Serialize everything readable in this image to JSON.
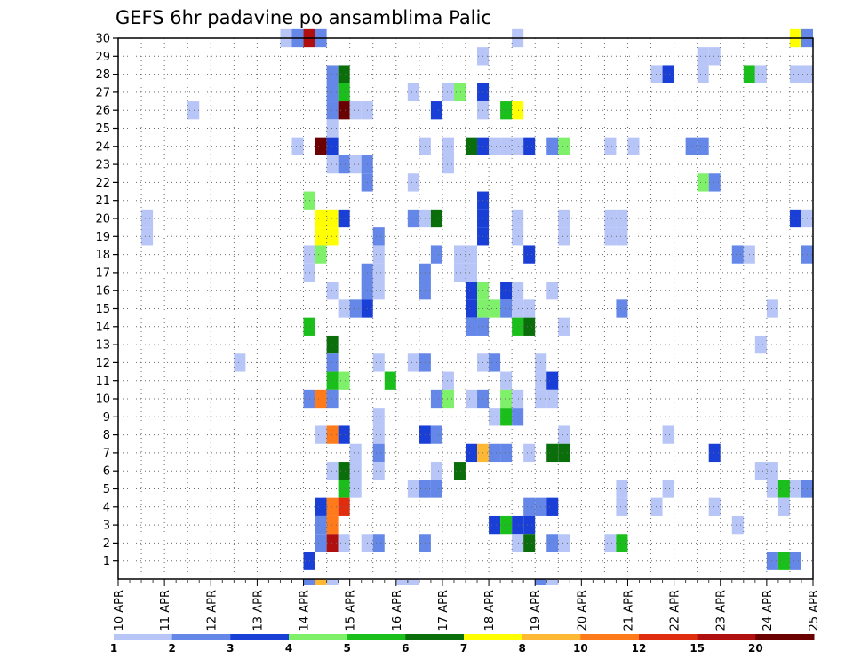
{
  "chart_data": {
    "type": "heatmap",
    "title": "GEFS 6hr padavine po ansamblima Palic",
    "x_tick_labels": [
      "10 APR",
      "11 APR",
      "12 APR",
      "13 APR",
      "14 APR",
      "15 APR",
      "16 APR",
      "17 APR",
      "18 APR",
      "19 APR",
      "20 APR",
      "21 APR",
      "22 APR",
      "23 APR",
      "24 APR",
      "25 APR"
    ],
    "y_tick_labels": [
      "1",
      "2",
      "3",
      "4",
      "5",
      "6",
      "7",
      "8",
      "9",
      "10",
      "11",
      "12",
      "13",
      "14",
      "15",
      "16",
      "17",
      "18",
      "19",
      "20",
      "21",
      "22",
      "23",
      "24",
      "25",
      "26",
      "27",
      "28",
      "29",
      "30"
    ],
    "y_range": [
      0,
      30
    ],
    "x_range_steps": [
      0,
      60
    ],
    "grid": "dotted",
    "legend_placement": "bottom",
    "legend_labels": [
      "1",
      "2",
      "3",
      "4",
      "5",
      "6",
      "7",
      "8",
      "10",
      "12",
      "15",
      "20"
    ],
    "legend_colors": [
      "#b7c5f7",
      "#6587e8",
      "#1a3fd6",
      "#7ef06a",
      "#1bbf1b",
      "#0a6e0a",
      "#ffff00",
      "#ffb833",
      "#ff7a1a",
      "#e02d0f",
      "#b00f0f",
      "#6b0000"
    ],
    "cell_columns_note": "cells are [time_step, member, class] where time_step counts 6-hour steps from 10 APR 00Z and class indexes legend_colors",
    "cells": [
      [
        14,
        30,
        0
      ],
      [
        15,
        30,
        1
      ],
      [
        16,
        30,
        10
      ],
      [
        17,
        30,
        1
      ],
      [
        34,
        30,
        0
      ],
      [
        58,
        30,
        6
      ],
      [
        59,
        30,
        1
      ],
      [
        31,
        29,
        0
      ],
      [
        50,
        29,
        0
      ],
      [
        51,
        29,
        0
      ],
      [
        18,
        28,
        1
      ],
      [
        19,
        28,
        5
      ],
      [
        46,
        28,
        0
      ],
      [
        47,
        28,
        2
      ],
      [
        50,
        28,
        0
      ],
      [
        54,
        28,
        4
      ],
      [
        55,
        28,
        0
      ],
      [
        58,
        28,
        0
      ],
      [
        59,
        28,
        0
      ],
      [
        18,
        27,
        1
      ],
      [
        19,
        27,
        4
      ],
      [
        25,
        27,
        0
      ],
      [
        28,
        27,
        0
      ],
      [
        29,
        27,
        3
      ],
      [
        31,
        27,
        2
      ],
      [
        6,
        26,
        0
      ],
      [
        18,
        26,
        1
      ],
      [
        19,
        26,
        11
      ],
      [
        20,
        26,
        0
      ],
      [
        21,
        26,
        0
      ],
      [
        27,
        26,
        2
      ],
      [
        31,
        26,
        0
      ],
      [
        33,
        26,
        4
      ],
      [
        34,
        26,
        6
      ],
      [
        18,
        25,
        0
      ],
      [
        15,
        24,
        0
      ],
      [
        17,
        24,
        11
      ],
      [
        18,
        24,
        2
      ],
      [
        26,
        24,
        0
      ],
      [
        28,
        24,
        0
      ],
      [
        30,
        24,
        5
      ],
      [
        31,
        24,
        2
      ],
      [
        32,
        24,
        0
      ],
      [
        33,
        24,
        0
      ],
      [
        34,
        24,
        0
      ],
      [
        35,
        24,
        2
      ],
      [
        37,
        24,
        1
      ],
      [
        38,
        24,
        3
      ],
      [
        42,
        24,
        0
      ],
      [
        44,
        24,
        0
      ],
      [
        49,
        24,
        1
      ],
      [
        50,
        24,
        1
      ],
      [
        18,
        23,
        0
      ],
      [
        19,
        23,
        1
      ],
      [
        20,
        23,
        0
      ],
      [
        21,
        23,
        1
      ],
      [
        28,
        23,
        0
      ],
      [
        21,
        22,
        1
      ],
      [
        25,
        22,
        0
      ],
      [
        50,
        22,
        3
      ],
      [
        51,
        22,
        1
      ],
      [
        16,
        21,
        3
      ],
      [
        31,
        21,
        2
      ],
      [
        2,
        20,
        0
      ],
      [
        17,
        20,
        6
      ],
      [
        18,
        20,
        6
      ],
      [
        19,
        20,
        2
      ],
      [
        25,
        20,
        1
      ],
      [
        26,
        20,
        0
      ],
      [
        27,
        20,
        5
      ],
      [
        31,
        20,
        2
      ],
      [
        34,
        20,
        0
      ],
      [
        38,
        20,
        0
      ],
      [
        42,
        20,
        0
      ],
      [
        43,
        20,
        0
      ],
      [
        58,
        20,
        2
      ],
      [
        59,
        20,
        0
      ],
      [
        2,
        19,
        0
      ],
      [
        17,
        19,
        6
      ],
      [
        18,
        19,
        6
      ],
      [
        22,
        19,
        1
      ],
      [
        31,
        19,
        2
      ],
      [
        34,
        19,
        0
      ],
      [
        38,
        19,
        0
      ],
      [
        42,
        19,
        0
      ],
      [
        43,
        19,
        0
      ],
      [
        16,
        18,
        0
      ],
      [
        17,
        18,
        3
      ],
      [
        22,
        18,
        0
      ],
      [
        27,
        18,
        1
      ],
      [
        29,
        18,
        0
      ],
      [
        30,
        18,
        0
      ],
      [
        35,
        18,
        2
      ],
      [
        53,
        18,
        1
      ],
      [
        54,
        18,
        0
      ],
      [
        59,
        18,
        1
      ],
      [
        16,
        17,
        0
      ],
      [
        21,
        17,
        1
      ],
      [
        22,
        17,
        0
      ],
      [
        26,
        17,
        1
      ],
      [
        29,
        17,
        0
      ],
      [
        30,
        17,
        0
      ],
      [
        18,
        16,
        0
      ],
      [
        21,
        16,
        1
      ],
      [
        22,
        16,
        0
      ],
      [
        26,
        16,
        1
      ],
      [
        30,
        16,
        2
      ],
      [
        31,
        16,
        3
      ],
      [
        33,
        16,
        2
      ],
      [
        34,
        16,
        0
      ],
      [
        37,
        16,
        0
      ],
      [
        19,
        15,
        0
      ],
      [
        20,
        15,
        1
      ],
      [
        21,
        15,
        2
      ],
      [
        30,
        15,
        2
      ],
      [
        31,
        15,
        3
      ],
      [
        32,
        15,
        3
      ],
      [
        33,
        15,
        1
      ],
      [
        34,
        15,
        0
      ],
      [
        35,
        15,
        0
      ],
      [
        43,
        15,
        1
      ],
      [
        56,
        15,
        0
      ],
      [
        16,
        14,
        4
      ],
      [
        30,
        14,
        1
      ],
      [
        31,
        14,
        1
      ],
      [
        34,
        14,
        4
      ],
      [
        35,
        14,
        5
      ],
      [
        38,
        14,
        0
      ],
      [
        18,
        13,
        5
      ],
      [
        55,
        13,
        0
      ],
      [
        10,
        12,
        0
      ],
      [
        18,
        12,
        1
      ],
      [
        22,
        12,
        0
      ],
      [
        25,
        12,
        0
      ],
      [
        26,
        12,
        1
      ],
      [
        31,
        12,
        0
      ],
      [
        32,
        12,
        1
      ],
      [
        36,
        12,
        0
      ],
      [
        18,
        11,
        4
      ],
      [
        19,
        11,
        3
      ],
      [
        23,
        11,
        4
      ],
      [
        28,
        11,
        0
      ],
      [
        33,
        11,
        0
      ],
      [
        36,
        11,
        0
      ],
      [
        37,
        11,
        2
      ],
      [
        16,
        10,
        1
      ],
      [
        17,
        10,
        8
      ],
      [
        18,
        10,
        1
      ],
      [
        27,
        10,
        1
      ],
      [
        28,
        10,
        3
      ],
      [
        30,
        10,
        0
      ],
      [
        31,
        10,
        1
      ],
      [
        33,
        10,
        3
      ],
      [
        34,
        10,
        0
      ],
      [
        36,
        10,
        0
      ],
      [
        37,
        10,
        0
      ],
      [
        22,
        9,
        0
      ],
      [
        32,
        9,
        0
      ],
      [
        33,
        9,
        4
      ],
      [
        34,
        9,
        1
      ],
      [
        17,
        8,
        0
      ],
      [
        18,
        8,
        8
      ],
      [
        19,
        8,
        2
      ],
      [
        22,
        8,
        0
      ],
      [
        26,
        8,
        2
      ],
      [
        27,
        8,
        1
      ],
      [
        38,
        8,
        0
      ],
      [
        47,
        8,
        0
      ],
      [
        20,
        7,
        0
      ],
      [
        22,
        7,
        1
      ],
      [
        30,
        7,
        2
      ],
      [
        31,
        7,
        7
      ],
      [
        32,
        7,
        1
      ],
      [
        33,
        7,
        1
      ],
      [
        35,
        7,
        0
      ],
      [
        37,
        7,
        5
      ],
      [
        38,
        7,
        5
      ],
      [
        51,
        7,
        2
      ],
      [
        18,
        6,
        0
      ],
      [
        19,
        6,
        5
      ],
      [
        20,
        6,
        0
      ],
      [
        22,
        6,
        0
      ],
      [
        27,
        6,
        0
      ],
      [
        29,
        6,
        5
      ],
      [
        55,
        6,
        0
      ],
      [
        56,
        6,
        0
      ],
      [
        19,
        5,
        4
      ],
      [
        20,
        5,
        0
      ],
      [
        25,
        5,
        0
      ],
      [
        26,
        5,
        1
      ],
      [
        27,
        5,
        1
      ],
      [
        43,
        5,
        0
      ],
      [
        47,
        5,
        0
      ],
      [
        56,
        5,
        0
      ],
      [
        57,
        5,
        4
      ],
      [
        58,
        5,
        0
      ],
      [
        59,
        5,
        1
      ],
      [
        17,
        4,
        2
      ],
      [
        18,
        4,
        8
      ],
      [
        19,
        4,
        9
      ],
      [
        35,
        4,
        1
      ],
      [
        36,
        4,
        1
      ],
      [
        37,
        4,
        2
      ],
      [
        43,
        4,
        0
      ],
      [
        46,
        4,
        0
      ],
      [
        51,
        4,
        0
      ],
      [
        57,
        4,
        0
      ],
      [
        17,
        3,
        1
      ],
      [
        18,
        3,
        8
      ],
      [
        32,
        3,
        2
      ],
      [
        33,
        3,
        4
      ],
      [
        34,
        3,
        2
      ],
      [
        35,
        3,
        2
      ],
      [
        53,
        3,
        0
      ],
      [
        17,
        2,
        1
      ],
      [
        18,
        2,
        10
      ],
      [
        19,
        2,
        0
      ],
      [
        21,
        2,
        0
      ],
      [
        22,
        2,
        1
      ],
      [
        26,
        2,
        1
      ],
      [
        34,
        2,
        0
      ],
      [
        35,
        2,
        5
      ],
      [
        37,
        2,
        1
      ],
      [
        38,
        2,
        0
      ],
      [
        42,
        2,
        0
      ],
      [
        43,
        2,
        4
      ],
      [
        16,
        1,
        2
      ],
      [
        56,
        1,
        1
      ],
      [
        57,
        1,
        4
      ],
      [
        58,
        1,
        1
      ],
      [
        16,
        0,
        1
      ],
      [
        17,
        0,
        7
      ],
      [
        18,
        0,
        0
      ],
      [
        24,
        0,
        0
      ],
      [
        25,
        0,
        0
      ],
      [
        36,
        0,
        1
      ],
      [
        37,
        0,
        0
      ]
    ]
  }
}
